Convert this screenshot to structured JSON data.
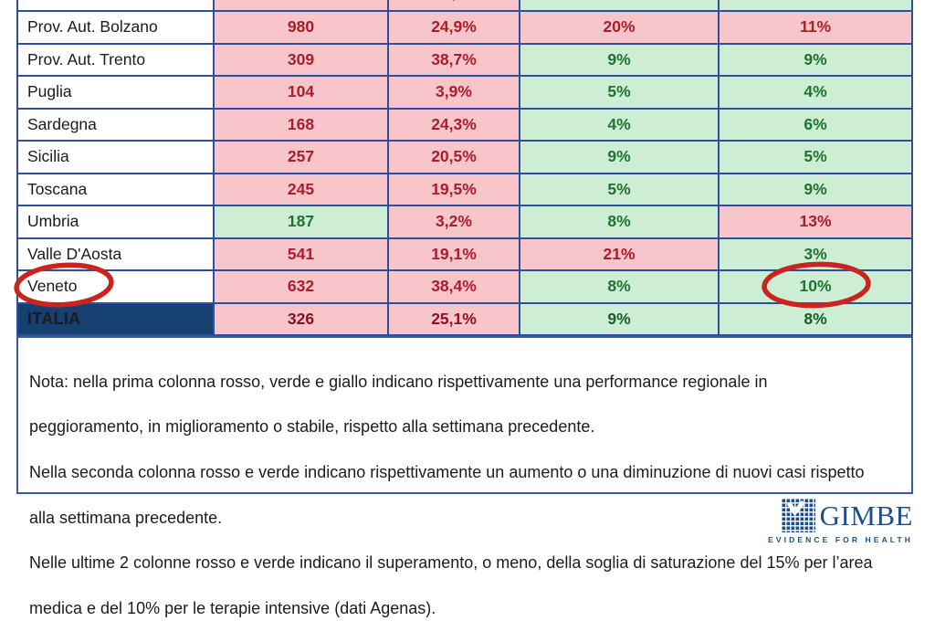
{
  "table": {
    "partial_row": {
      "fills": [
        "white",
        "red",
        "red",
        "green",
        "green"
      ],
      "partial_text": ","
    },
    "rows": [
      {
        "region": "Prov. Aut. Bolzano",
        "values": [
          "980",
          "24,9%",
          "20%",
          "11%"
        ],
        "fills": [
          "red",
          "red",
          "red",
          "red"
        ],
        "is_total": false
      },
      {
        "region": "Prov. Aut. Trento",
        "values": [
          "309",
          "38,7%",
          "9%",
          "9%"
        ],
        "fills": [
          "red",
          "red",
          "green",
          "green"
        ],
        "is_total": false
      },
      {
        "region": "Puglia",
        "values": [
          "104",
          "3,9%",
          "5%",
          "4%"
        ],
        "fills": [
          "red",
          "red",
          "green",
          "green"
        ],
        "is_total": false
      },
      {
        "region": "Sardegna",
        "values": [
          "168",
          "24,3%",
          "4%",
          "6%"
        ],
        "fills": [
          "red",
          "red",
          "green",
          "green"
        ],
        "is_total": false
      },
      {
        "region": "Sicilia",
        "values": [
          "257",
          "20,5%",
          "9%",
          "5%"
        ],
        "fills": [
          "red",
          "red",
          "green",
          "green"
        ],
        "is_total": false
      },
      {
        "region": "Toscana",
        "values": [
          "245",
          "19,5%",
          "5%",
          "9%"
        ],
        "fills": [
          "red",
          "red",
          "green",
          "green"
        ],
        "is_total": false
      },
      {
        "region": "Umbria",
        "values": [
          "187",
          "3,2%",
          "8%",
          "13%"
        ],
        "fills": [
          "green",
          "red",
          "green",
          "red"
        ],
        "is_total": false
      },
      {
        "region": "Valle D'Aosta",
        "values": [
          "541",
          "19,1%",
          "21%",
          "3%"
        ],
        "fills": [
          "red",
          "red",
          "red",
          "green"
        ],
        "is_total": false
      },
      {
        "region": "Veneto",
        "values": [
          "632",
          "38,4%",
          "8%",
          "10%"
        ],
        "fills": [
          "red",
          "red",
          "green",
          "green"
        ],
        "is_total": false
      },
      {
        "region": "ITALIA",
        "values": [
          "326",
          "25,1%",
          "9%",
          "8%"
        ],
        "fills": [
          "red",
          "red",
          "green",
          "green"
        ],
        "is_total": true
      }
    ]
  },
  "note": {
    "lines": [
      "Nota: nella prima colonna rosso, verde e giallo indicano rispettivamente una performance regionale in",
      "peggioramento, in miglioramento o stabile, rispetto alla settimana precedente.",
      "Nella seconda colonna rosso e verde indicano rispettivamente un aumento o una diminuzione di nuovi casi rispetto",
      "alla settimana precedente.",
      "Nelle ultime 2 colonne rosso e verde indicano il superamento, o meno, della soglia di saturazione del 15% per l’area",
      "medica e del 10% per le terapie intensive (dati Agenas)."
    ]
  },
  "annotations": {
    "circled_region": "Veneto",
    "circled_value": "10%",
    "color": "#C8251E"
  },
  "logo": {
    "name": "GIMBE",
    "tagline": "EVIDENCE FOR HEALTH",
    "color": "#1C4E8C"
  },
  "colors": {
    "cell_red_bg": "#F8C5CB",
    "cell_red_text": "#A81E2C",
    "cell_green_bg": "#CDEDD5",
    "cell_green_text": "#1F7330",
    "table_border": "#2F4F9E",
    "total_row_bg": "#16406F"
  }
}
